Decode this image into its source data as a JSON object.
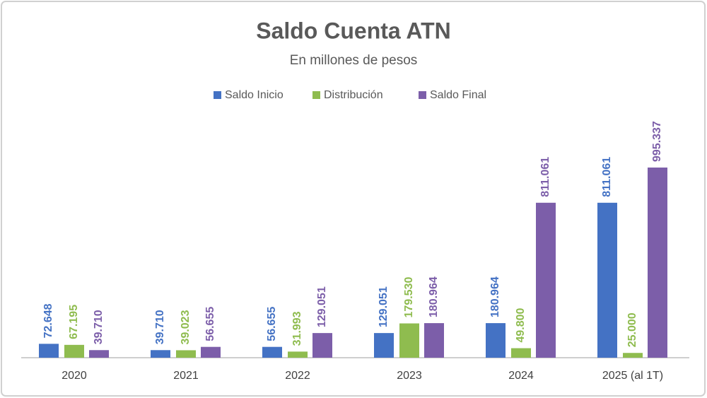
{
  "chart_data": {
    "type": "bar",
    "title": "Saldo Cuenta ATN",
    "subtitle": "En millones de pesos",
    "categories": [
      "2020",
      "2021",
      "2022",
      "2023",
      "2024",
      "2025 (al 1T)"
    ],
    "legend": "top",
    "series": [
      {
        "name": "Saldo Inicio",
        "color": "#4472c4",
        "values": [
          72648,
          39710,
          56655,
          129051,
          180964,
          811061
        ],
        "value_labels": [
          "72.648",
          "39.710",
          "56.655",
          "129.051",
          "180.964",
          "811.061"
        ]
      },
      {
        "name": "Distribución",
        "color": "#8fbc4f",
        "values": [
          67195,
          39023,
          31993,
          179530,
          49800,
          25000
        ],
        "value_labels": [
          "67.195",
          "39.023",
          "31.993",
          "179.530",
          "49.800",
          "25.000"
        ]
      },
      {
        "name": "Saldo Final",
        "color": "#7c5ea9",
        "values": [
          39710,
          56655,
          129051,
          180964,
          811061,
          995337
        ],
        "value_labels": [
          "39.710",
          "56.655",
          "129.051",
          "180.964",
          "811.061",
          "995.337"
        ]
      }
    ]
  }
}
